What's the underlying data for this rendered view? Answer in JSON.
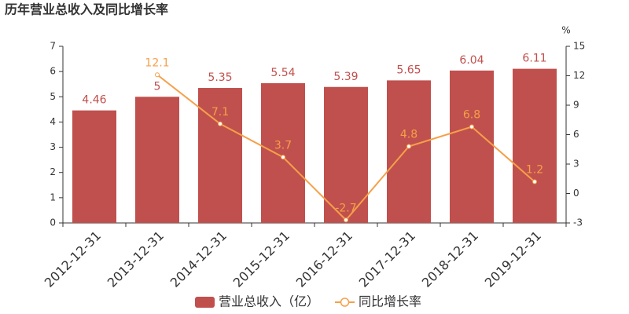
{
  "chart_data": {
    "type": "bar",
    "title": "历年营业总收入及同比增长率",
    "y2_label": "%",
    "categories": [
      "2012-12-31",
      "2013-12-31",
      "2014-12-31",
      "2015-12-31",
      "2016-12-31",
      "2017-12-31",
      "2018-12-31",
      "2019-12-31"
    ],
    "series": [
      {
        "name": "营业总收入（亿）",
        "type": "bar",
        "color": "#c0504d",
        "values": [
          4.46,
          5,
          5.35,
          5.54,
          5.39,
          5.65,
          6.04,
          6.11
        ]
      },
      {
        "name": "同比增长率",
        "type": "line",
        "axis": "y2",
        "color": "#f5a04a",
        "values": [
          null,
          12.1,
          7.1,
          3.7,
          -2.7,
          4.8,
          6.8,
          1.2
        ]
      }
    ],
    "ylim": [
      0,
      7
    ],
    "yticks": [
      0,
      1,
      2,
      3,
      4,
      5,
      6,
      7
    ],
    "y2lim": [
      -3,
      15
    ],
    "y2ticks": [
      -3,
      0,
      3,
      6,
      9,
      12,
      15
    ],
    "grid": false,
    "legend": "bottom"
  }
}
